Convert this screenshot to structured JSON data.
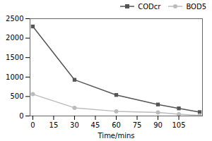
{
  "chart_data": {
    "type": "line",
    "xlabel": "Time/mins",
    "x": [
      0,
      30,
      60,
      90,
      105,
      120
    ],
    "series": [
      {
        "name": "CODcr",
        "color": "#555555",
        "marker": "square",
        "values": [
          2300,
          930,
          540,
          295,
          195,
          100
        ]
      },
      {
        "name": "BOD5",
        "color": "#bbbbbb",
        "marker": "circle",
        "values": [
          560,
          210,
          120,
          90,
          45,
          15
        ]
      }
    ],
    "xlim": [
      -2,
      122
    ],
    "xticks": [
      0,
      15,
      30,
      45,
      60,
      75,
      90,
      105
    ],
    "ylim": [
      0,
      2500
    ],
    "yticks": [
      0,
      500,
      1000,
      1500,
      2000,
      2500
    ],
    "legend": "upper right",
    "grid": false
  }
}
